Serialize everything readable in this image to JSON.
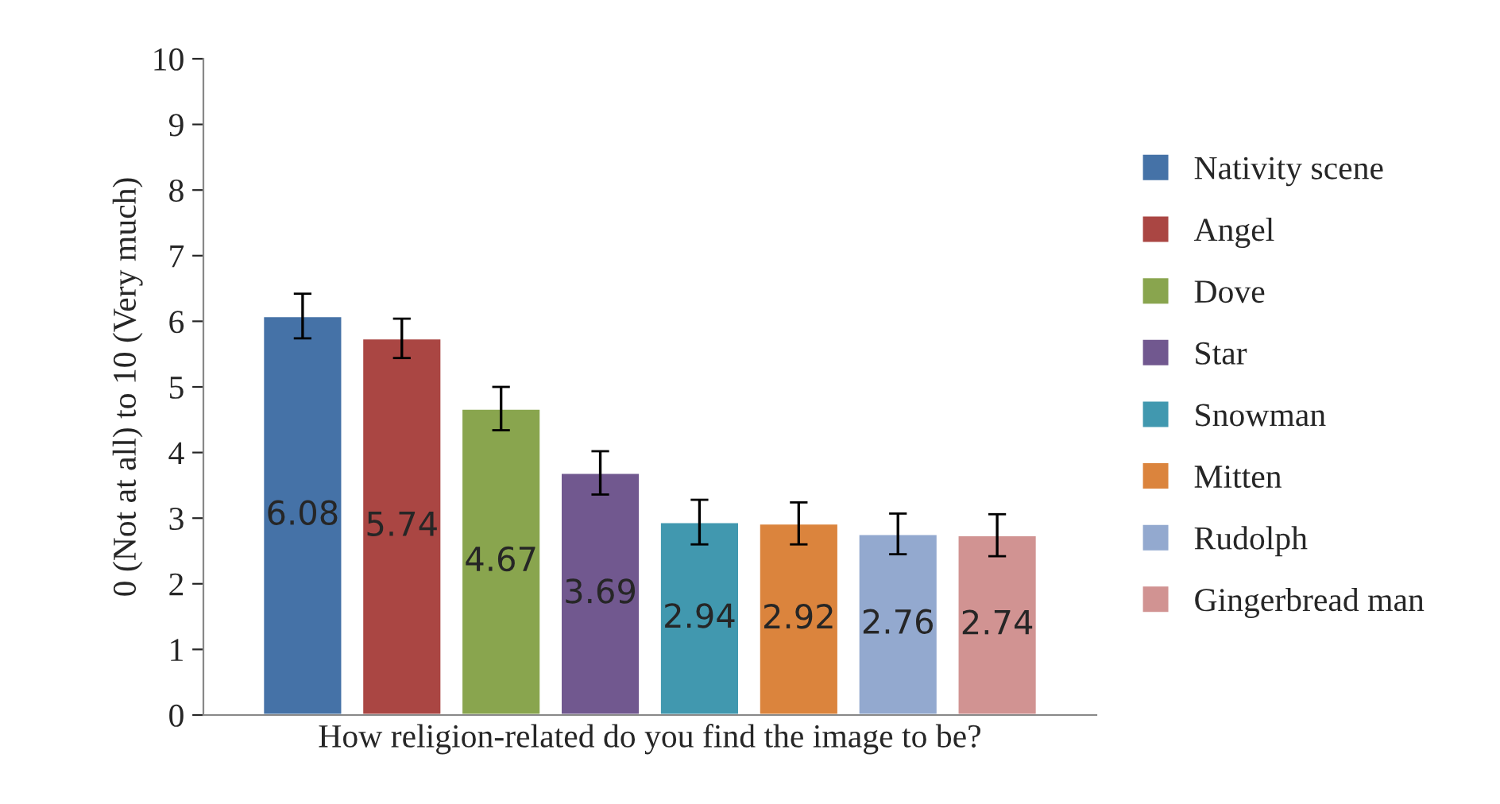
{
  "chart_data": {
    "type": "bar",
    "categories": [
      null
    ],
    "xlabel": "How religion-related do you find the image to be?",
    "ylabel": "0 (Not at all) to 10 (Very much)",
    "ylim": [
      0,
      10
    ],
    "yticks": [
      0,
      1,
      2,
      3,
      4,
      5,
      6,
      7,
      8,
      9,
      10
    ],
    "grid": false,
    "legend": "right",
    "tick_labels": "y",
    "data_labels": true,
    "series": [
      {
        "name": "Nativity scene",
        "color": "#4572a7",
        "values": [
          6.08
        ],
        "errors": [
          0.34
        ]
      },
      {
        "name": "Angel",
        "color": "#aa4643",
        "values": [
          5.74
        ],
        "errors": [
          0.3
        ]
      },
      {
        "name": "Dove",
        "color": "#89a54e",
        "values": [
          4.67
        ],
        "errors": [
          0.33
        ]
      },
      {
        "name": "Star",
        "color": "#71588f",
        "values": [
          3.69
        ],
        "errors": [
          0.33
        ]
      },
      {
        "name": "Snowman",
        "color": "#4198af",
        "values": [
          2.94
        ],
        "errors": [
          0.34
        ]
      },
      {
        "name": "Mitten",
        "color": "#db843d",
        "values": [
          2.92
        ],
        "errors": [
          0.32
        ]
      },
      {
        "name": "Rudolph",
        "color": "#93a9cf",
        "values": [
          2.76
        ],
        "errors": [
          0.31
        ]
      },
      {
        "name": "Gingerbread man",
        "color": "#d19392",
        "values": [
          2.74
        ],
        "errors": [
          0.32
        ]
      }
    ]
  }
}
